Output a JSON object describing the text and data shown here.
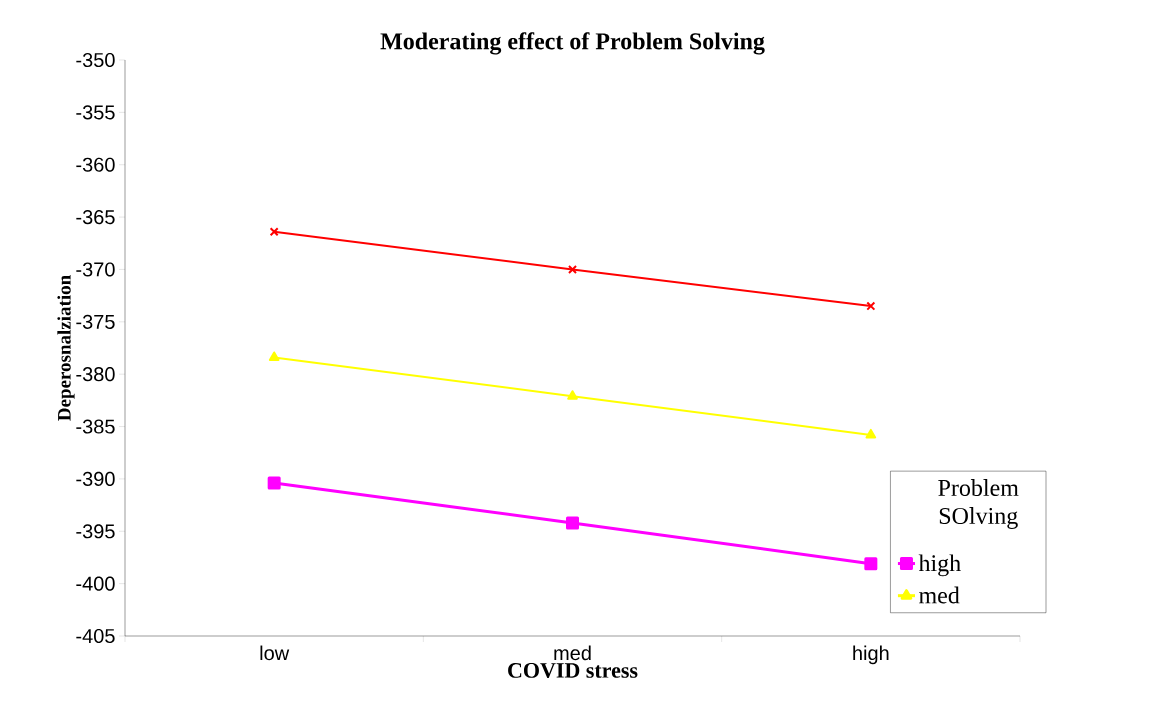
{
  "chart_data": {
    "type": "line",
    "title": "Moderating effect of Problem Solving",
    "xlabel": "COVID stress",
    "ylabel": "Deperosnalziation",
    "categories": [
      "low",
      "med",
      "high"
    ],
    "series": [
      {
        "name": "high",
        "color": "#ff00ff",
        "marker": "square",
        "values": [
          -390.4,
          -394.2,
          -398.1
        ]
      },
      {
        "name": "med",
        "color": "#ffff00",
        "marker": "triangle",
        "values": [
          -378.4,
          -382.1,
          -385.8
        ]
      },
      {
        "color": "#ff0000",
        "marker": "cross",
        "values": [
          -366.4,
          -370.0,
          -373.5
        ]
      }
    ],
    "ylim": [
      -405,
      -350
    ],
    "yticks": [
      -405,
      -400,
      -395,
      -390,
      -385,
      -380,
      -375,
      -370,
      -365,
      -360,
      -355,
      -350
    ],
    "legend": "right",
    "legend_title": "Problem SOlving",
    "grid": false,
    "line_style": "solid"
  }
}
